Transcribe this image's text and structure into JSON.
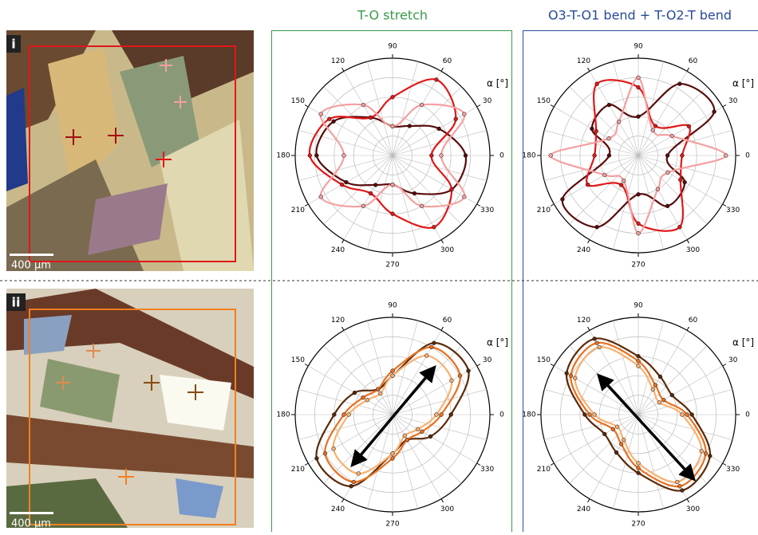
{
  "columns": [
    "T-O stretch",
    "O3-T-O1 bend + T-O2-T bend"
  ],
  "rows": [
    {
      "label": "i",
      "scale_bar": "400 µm"
    },
    {
      "label": "ii",
      "scale_bar": "400 µm"
    }
  ],
  "charts": [
    {
      "type": "polar",
      "axis_label": "α [°]",
      "rlim": [
        0,
        1
      ],
      "angle_ticks": [
        0,
        30,
        60,
        90,
        120,
        150,
        180,
        210,
        240,
        270,
        300,
        330
      ],
      "series": [
        {
          "color": "#5a0c0c",
          "values": [
            0.75,
            0.55,
            0.35,
            0.3,
            0.45,
            0.7,
            0.78,
            0.55,
            0.35,
            0.3,
            0.45,
            0.7
          ]
        },
        {
          "color": "#e01818",
          "values": [
            0.4,
            0.75,
            0.9,
            0.6,
            0.45,
            0.75,
            0.85,
            0.6,
            0.45,
            0.6,
            0.85,
            0.7
          ]
        },
        {
          "color": "#f4a0a0",
          "values": [
            0.5,
            0.85,
            0.6,
            0.3,
            0.6,
            0.85,
            0.5,
            0.85,
            0.6,
            0.3,
            0.6,
            0.85
          ]
        }
      ]
    },
    {
      "type": "polar",
      "axis_label": "α [°]",
      "rlim": [
        0,
        1
      ],
      "angle_ticks": [
        0,
        30,
        60,
        90,
        120,
        150,
        180,
        210,
        240,
        270,
        300,
        330
      ],
      "series": [
        {
          "color": "#5a0c0c",
          "values": [
            0.3,
            0.9,
            0.85,
            0.4,
            0.6,
            0.55,
            0.3,
            0.9,
            0.85,
            0.4,
            0.6,
            0.55
          ]
        },
        {
          "color": "#e01818",
          "values": [
            0.45,
            0.6,
            0.35,
            0.7,
            0.85,
            0.5,
            0.45,
            0.6,
            0.35,
            0.7,
            0.85,
            0.5
          ]
        },
        {
          "color": "#f4a0a0",
          "values": [
            0.9,
            0.4,
            0.3,
            0.8,
            0.4,
            0.35,
            0.9,
            0.4,
            0.3,
            0.8,
            0.4,
            0.35
          ]
        }
      ]
    },
    {
      "type": "polar",
      "axis_label": "α [°]",
      "rlim": [
        0,
        1
      ],
      "angle_ticks": [
        0,
        30,
        60,
        90,
        120,
        150,
        180,
        210,
        240,
        270,
        300,
        330
      ],
      "series": [
        {
          "color": "#5a2a0a",
          "values": [
            0.6,
            0.9,
            0.85,
            0.4,
            0.3,
            0.45,
            0.6,
            0.9,
            0.85,
            0.4,
            0.3,
            0.45
          ]
        },
        {
          "color": "#e87020",
          "values": [
            0.5,
            0.8,
            0.8,
            0.45,
            0.3,
            0.35,
            0.5,
            0.8,
            0.8,
            0.45,
            0.3,
            0.35
          ]
        },
        {
          "color": "#f8b070",
          "values": [
            0.45,
            0.7,
            0.7,
            0.4,
            0.25,
            0.3,
            0.45,
            0.7,
            0.7,
            0.4,
            0.25,
            0.3
          ]
        }
      ]
    },
    {
      "type": "polar",
      "axis_label": "α [°]",
      "rlim": [
        0,
        1
      ],
      "angle_ticks": [
        0,
        30,
        60,
        90,
        120,
        150,
        180,
        210,
        240,
        270,
        300,
        330
      ],
      "series": [
        {
          "color": "#5a2a0a",
          "values": [
            0.55,
            0.4,
            0.45,
            0.6,
            0.9,
            0.85,
            0.55,
            0.4,
            0.45,
            0.6,
            0.9,
            0.85
          ]
        },
        {
          "color": "#e87020",
          "values": [
            0.5,
            0.3,
            0.35,
            0.55,
            0.85,
            0.8,
            0.5,
            0.3,
            0.35,
            0.55,
            0.85,
            0.8
          ]
        },
        {
          "color": "#f8b070",
          "values": [
            0.45,
            0.25,
            0.3,
            0.5,
            0.8,
            0.75,
            0.45,
            0.25,
            0.3,
            0.5,
            0.8,
            0.75
          ]
        }
      ]
    }
  ]
}
